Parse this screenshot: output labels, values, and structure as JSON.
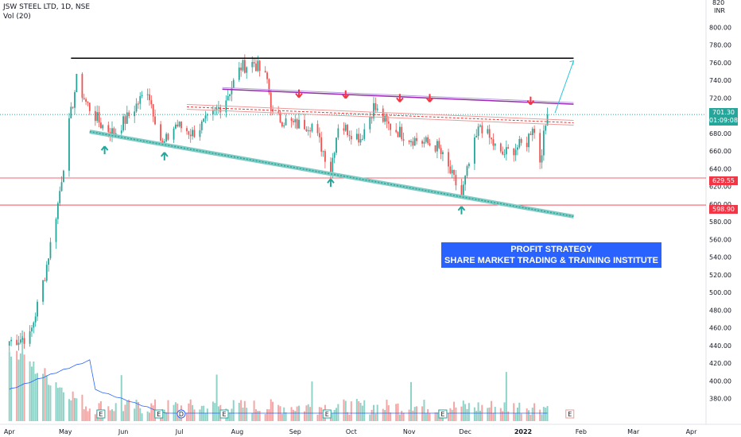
{
  "header": {
    "symbol_line": "JSW STEEL LTD, 1D, NSE",
    "indicator": "Vol (20)"
  },
  "currency": "INR",
  "price_axis_ticks": [
    380,
    400,
    420,
    440,
    460,
    480,
    500,
    520,
    540,
    560,
    580,
    600,
    620,
    640,
    660,
    680,
    700,
    720,
    740,
    760,
    780,
    800
  ],
  "price_axis_top_label": "820",
  "time_axis_labels": [
    "Apr",
    "May",
    "Jun",
    "Jul",
    "Aug",
    "Sep",
    "Oct",
    "Nov",
    "Dec",
    "2022",
    "Feb",
    "Mar",
    "Apr"
  ],
  "current_price": {
    "price": "701.30",
    "countdown": "01:09:08",
    "value": 701.3
  },
  "levels": [
    {
      "label": "629.55",
      "value": 629.55
    },
    {
      "label": "598.90",
      "value": 598.9
    }
  ],
  "banner": {
    "line1": "PROFIT STRATEGY",
    "line2": "SHARE MARKET TRADING & TRAINING INSTITUTE"
  },
  "colors": {
    "up": "#26a69a",
    "down": "#ef5350",
    "level_line": "#f23645",
    "banner_bg": "#2962ff",
    "resistance": "#000000",
    "channel": "#9c27b0"
  },
  "event_markers": [
    "E",
    "E",
    "D",
    "E",
    "E",
    "E",
    "E"
  ],
  "chart_data": {
    "type": "candlestick",
    "title": "JSW STEEL LTD, 1D, NSE",
    "ylabel": "INR",
    "ylim": [
      375,
      820
    ],
    "start_date": "2021-04-01",
    "x_labels": [
      "Apr",
      "May",
      "Jun",
      "Jul",
      "Aug",
      "Sep",
      "Oct",
      "Nov",
      "Dec",
      "2022",
      "Feb",
      "Mar",
      "Apr"
    ],
    "close_series_anchors": [
      [
        "2021-04-01",
        445
      ],
      [
        "2021-04-12",
        450
      ],
      [
        "2021-04-20",
        520
      ],
      [
        "2021-04-27",
        600
      ],
      [
        "2021-05-03",
        690
      ],
      [
        "2021-05-07",
        740
      ],
      [
        "2021-05-12",
        715
      ],
      [
        "2021-05-20",
        690
      ],
      [
        "2021-05-27",
        680
      ],
      [
        "2021-06-04",
        700
      ],
      [
        "2021-06-14",
        730
      ],
      [
        "2021-06-22",
        665
      ],
      [
        "2021-06-29",
        690
      ],
      [
        "2021-07-08",
        680
      ],
      [
        "2021-07-19",
        700
      ],
      [
        "2021-07-26",
        720
      ],
      [
        "2021-08-03",
        755
      ],
      [
        "2021-08-10",
        760
      ],
      [
        "2021-08-17",
        740
      ],
      [
        "2021-08-20",
        700
      ],
      [
        "2021-08-31",
        690
      ],
      [
        "2021-09-10",
        690
      ],
      [
        "2021-09-20",
        640
      ],
      [
        "2021-09-24",
        690
      ],
      [
        "2021-10-06",
        675
      ],
      [
        "2021-10-13",
        710
      ],
      [
        "2021-10-20",
        690
      ],
      [
        "2021-11-01",
        675
      ],
      [
        "2021-11-16",
        665
      ],
      [
        "2021-11-29",
        610
      ],
      [
        "2021-12-03",
        645
      ],
      [
        "2021-12-09",
        690
      ],
      [
        "2021-12-20",
        655
      ],
      [
        "2022-01-03",
        670
      ],
      [
        "2022-01-06",
        690
      ],
      [
        "2022-01-10",
        650
      ],
      [
        "2022-01-14",
        701.3
      ]
    ],
    "volume_scale_note": "volume shown in lower pane, no numeric scale",
    "trendlines": [
      {
        "name": "resistance",
        "from": [
          "2021-05-04",
          765
        ],
        "to": [
          "2022-01-28",
          765
        ]
      },
      {
        "name": "upper channel",
        "from": [
          "2021-07-24",
          730
        ],
        "to": [
          "2022-01-28",
          713
        ]
      },
      {
        "name": "mid channel",
        "from": [
          "2021-07-05",
          710
        ],
        "to": [
          "2022-01-28",
          692
        ]
      },
      {
        "name": "support",
        "from": [
          "2021-05-14",
          682
        ],
        "to": [
          "2022-01-28",
          586
        ]
      },
      {
        "name": "projection",
        "from": [
          "2022-01-18",
          703
        ],
        "to": [
          "2022-01-28",
          762
        ]
      }
    ],
    "support_arrows": [
      [
        "2021-05-22",
        660
      ],
      [
        "2021-06-23",
        653
      ],
      [
        "2021-09-20",
        623
      ],
      [
        "2021-11-29",
        592
      ]
    ],
    "resistance_arrows": [
      [
        "2021-09-03",
        726
      ],
      [
        "2021-09-28",
        725
      ],
      [
        "2021-10-27",
        721
      ],
      [
        "2021-11-12",
        721
      ],
      [
        "2022-01-05",
        718
      ]
    ]
  }
}
